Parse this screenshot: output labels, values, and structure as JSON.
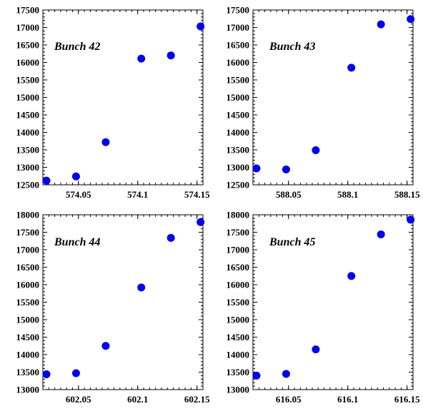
{
  "colors": {
    "marker": "#0000ee",
    "axis": "#000000",
    "background": "#ffffff"
  },
  "chart_data": [
    {
      "type": "scatter",
      "annotation": "Bunch 42",
      "x": [
        574.023,
        574.048,
        574.073,
        574.103,
        574.128,
        574.153
      ],
      "y": [
        12620,
        12740,
        13720,
        16110,
        16200,
        17030
      ],
      "xlim": [
        574.02,
        574.155
      ],
      "ylim": [
        12500,
        17500
      ],
      "xticks": [
        574.05,
        574.1,
        574.15
      ],
      "xtick_labels": [
        "574.05",
        "574.1",
        "574.15"
      ],
      "yticks": [
        12500,
        13000,
        13500,
        14000,
        14500,
        15000,
        15500,
        16000,
        16500,
        17000,
        17500
      ],
      "ytick_labels": [
        "12500",
        "13000",
        "13500",
        "14000",
        "14500",
        "15000",
        "15500",
        "16000",
        "16500",
        "17000",
        "17500"
      ],
      "grid": false
    },
    {
      "type": "scatter",
      "annotation": "Bunch 43",
      "x": [
        588.023,
        588.048,
        588.073,
        588.103,
        588.128,
        588.153
      ],
      "y": [
        12970,
        12940,
        13490,
        15850,
        17090,
        17240
      ],
      "xlim": [
        588.02,
        588.155
      ],
      "ylim": [
        12500,
        17500
      ],
      "xticks": [
        588.05,
        588.1,
        588.15
      ],
      "xtick_labels": [
        "588.05",
        "588.1",
        "588.15"
      ],
      "yticks": [
        12500,
        13000,
        13500,
        14000,
        14500,
        15000,
        15500,
        16000,
        16500,
        17000,
        17500
      ],
      "ytick_labels": [
        "12500",
        "13000",
        "13500",
        "14000",
        "14500",
        "15000",
        "15500",
        "16000",
        "16500",
        "17000",
        "17500"
      ],
      "grid": false
    },
    {
      "type": "scatter",
      "annotation": "Bunch 44",
      "x": [
        602.023,
        602.048,
        602.073,
        602.103,
        602.128,
        602.153
      ],
      "y": [
        13440,
        13470,
        14250,
        15920,
        17340,
        17790
      ],
      "xlim": [
        602.02,
        602.155
      ],
      "ylim": [
        13000,
        18000
      ],
      "xticks": [
        602.05,
        602.1,
        602.15
      ],
      "xtick_labels": [
        "602.05",
        "602.1",
        "602.15"
      ],
      "yticks": [
        13000,
        13500,
        14000,
        14500,
        15000,
        15500,
        16000,
        16500,
        17000,
        17500,
        18000
      ],
      "ytick_labels": [
        "13000",
        "13500",
        "14000",
        "14500",
        "15000",
        "15500",
        "16000",
        "16500",
        "17000",
        "17500",
        "18000"
      ],
      "grid": false
    },
    {
      "type": "scatter",
      "annotation": "Bunch 45",
      "x": [
        616.023,
        616.048,
        616.073,
        616.103,
        616.128,
        616.153
      ],
      "y": [
        13400,
        13450,
        14150,
        16250,
        17440,
        17860
      ],
      "xlim": [
        616.02,
        616.155
      ],
      "ylim": [
        13000,
        18000
      ],
      "xticks": [
        616.05,
        616.1,
        616.15
      ],
      "xtick_labels": [
        "616.05",
        "616.1",
        "616.15"
      ],
      "yticks": [
        13000,
        13500,
        14000,
        14500,
        15000,
        15500,
        16000,
        16500,
        17000,
        17500,
        18000
      ],
      "ytick_labels": [
        "13000",
        "13500",
        "14000",
        "14500",
        "15000",
        "15500",
        "16000",
        "16500",
        "17000",
        "17500",
        "18000"
      ],
      "grid": false
    }
  ]
}
